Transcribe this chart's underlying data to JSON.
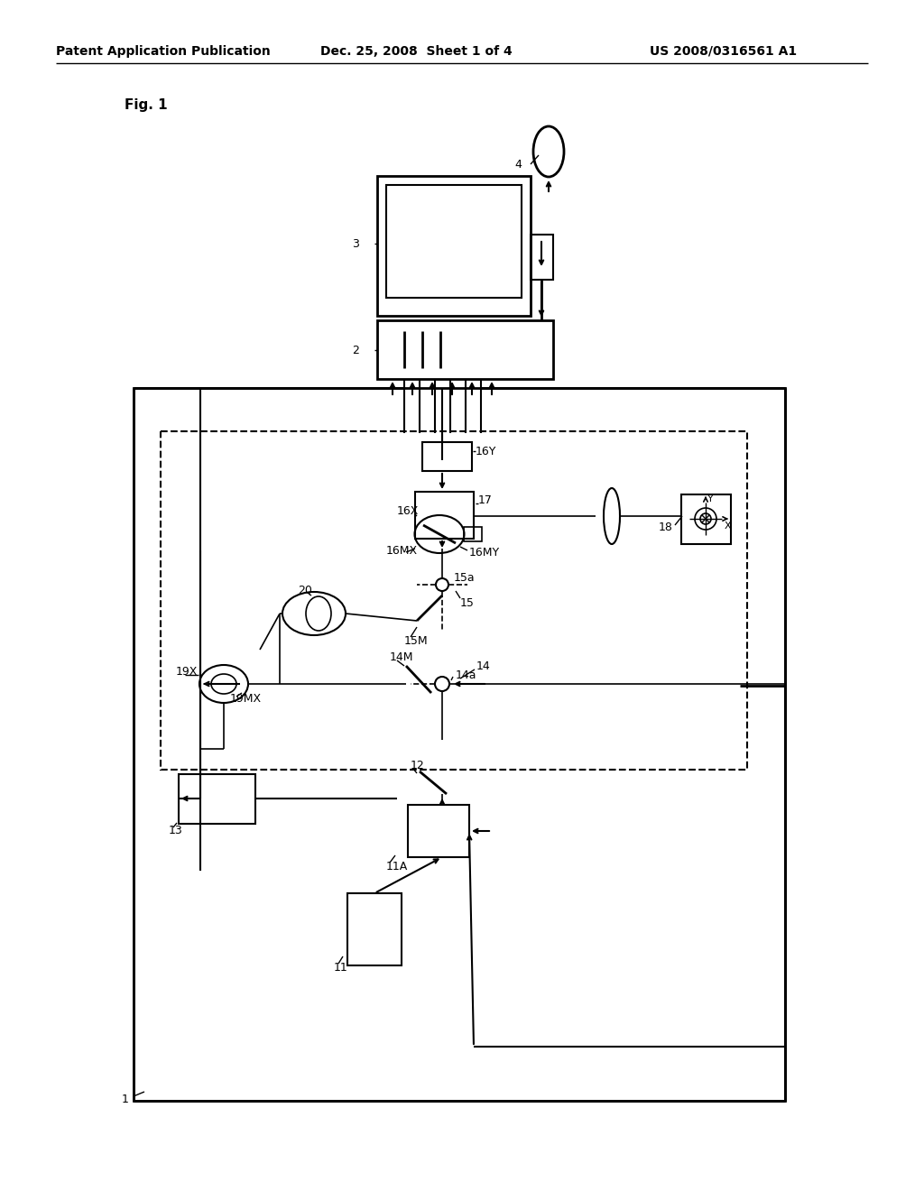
{
  "bg_color": "#ffffff",
  "header_left": "Patent Application Publication",
  "header_center": "Dec. 25, 2008  Sheet 1 of 4",
  "header_right": "US 2008/0316561 A1"
}
